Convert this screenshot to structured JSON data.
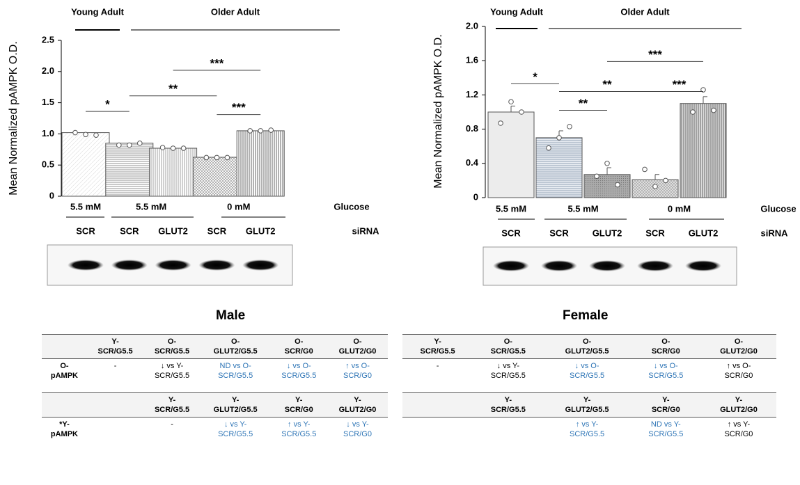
{
  "chart_data": [
    {
      "type": "bar",
      "y_label": "Mean Normalized pAMPK O.D.",
      "groups": [
        "Young Adult",
        "Older Adult"
      ],
      "glucose": [
        "5.5 mM",
        "5.5 mM",
        "0 mM"
      ],
      "glucose_label": "Glucose",
      "categories": [
        "SCR",
        "SCR",
        "GLUT2",
        "SCR",
        "GLUT2"
      ],
      "sirna_label": "siRNA",
      "values": [
        1.02,
        0.85,
        0.77,
        0.625,
        1.05
      ],
      "points": [
        [
          1.02,
          0.99,
          0.98
        ],
        [
          0.82,
          0.82,
          0.85
        ],
        [
          0.78,
          0.77,
          0.77
        ],
        [
          0.62,
          0.62,
          0.62
        ],
        [
          1.05,
          1.05,
          1.06
        ]
      ],
      "ylim": [
        0,
        2.5
      ],
      "yticks": [
        0,
        0.5,
        {
          "value": 1,
          "label": "1.0"
        },
        1.5,
        {
          "value": 2,
          "label": "2.0"
        },
        2.5
      ],
      "annotations": [
        {
          "from": 0,
          "to": 1,
          "y": 1.36,
          "label": "*"
        },
        {
          "from": 1,
          "to": 3,
          "y": 1.61,
          "label": "**"
        },
        {
          "from": 2,
          "to": 4,
          "y": 2.02,
          "label": "***"
        },
        {
          "from": 3,
          "to": 4,
          "y": 1.31,
          "label": "***"
        }
      ]
    },
    {
      "type": "bar",
      "y_label": "Mean Normalized pAMPK O.D.",
      "groups": [
        "Young Adult",
        "Older Adult"
      ],
      "glucose": [
        "5.5 mM",
        "5.5 mM",
        "0 mM"
      ],
      "glucose_label": "Glucose",
      "categories": [
        "SCR",
        "SCR",
        "GLUT2",
        "SCR",
        "GLUT2"
      ],
      "sirna_label": "siRNA",
      "values": [
        1.0,
        0.7,
        0.27,
        0.21,
        1.1
      ],
      "errors": [
        0.07,
        0.08,
        0.08,
        0.06,
        0.08
      ],
      "points": [
        [
          0.87,
          1.12,
          1.0
        ],
        [
          0.58,
          0.7,
          0.83
        ],
        [
          0.25,
          0.4,
          0.15
        ],
        [
          0.33,
          0.13,
          0.2
        ],
        [
          1.0,
          1.26,
          1.02
        ]
      ],
      "ylim": [
        0,
        2.0
      ],
      "yticks": [
        0,
        0.4,
        0.8,
        1.2,
        1.6,
        {
          "value": 2,
          "label": "2.0"
        }
      ],
      "annotations": [
        {
          "from": 0,
          "to": 1,
          "y": 1.33,
          "label": "*"
        },
        {
          "from": 1,
          "to": 2,
          "y": 1.02,
          "label": "**"
        },
        {
          "from": 1,
          "to": 3,
          "y": 1.24,
          "label": "**"
        },
        {
          "from": 2,
          "to": 4,
          "y": 1.59,
          "label": "***"
        },
        {
          "from": 3,
          "to": 4,
          "y": 1.24,
          "label": "***"
        }
      ]
    }
  ],
  "tables": [
    {
      "title": "Male",
      "rows": [
        [
          null,
          "Y-\nSCR/G5.5",
          "O-\nSCR/G5.5",
          "O-\nGLUT2/G5.5",
          "O-\nSCR/G0",
          "O-\nGLUT2/G0"
        ],
        [
          "O-\npAMPK",
          "-",
          "↓ vs Y-\nSCR/G5.5",
          {
            "text": "ND vs O-\nSCR/G5.5",
            "color": "#2e75b6"
          },
          {
            "text": "↓ vs O-\nSCR/G5.5",
            "color": "#2e75b6"
          },
          {
            "text": "↑ vs O-\nSCR/G0",
            "color": "#2e75b6"
          }
        ],
        [
          null,
          null,
          "Y-\nSCR/G5.5",
          "Y-\nGLUT2/G5.5",
          "Y-\nSCR/G0",
          "Y-\nGLUT2/G0"
        ],
        [
          "*Y-\npAMPK",
          null,
          "-",
          {
            "text": "↓ vs Y-\nSCR/G5.5",
            "color": "#2e75b6"
          },
          {
            "text": "↑ vs Y-\nSCR/G5.5",
            "color": "#2e75b6"
          },
          {
            "text": "↓ vs Y-\nSCR/G0",
            "color": "#2e75b6"
          }
        ]
      ]
    },
    {
      "title": "Female",
      "rows": [
        [
          "Y-\nSCR/G5.5",
          "O-\nSCR/G5.5",
          "O-\nGLUT2/G5.5",
          "O-\nSCR/G0",
          "O-\nGLUT2/G0"
        ],
        [
          "-",
          "↓ vs Y-\nSCR/G5.5",
          {
            "text": "↓ vs O-\nSCR/G5.5",
            "color": "#2e75b6"
          },
          {
            "text": "↓ vs O-\nSCR/G5.5",
            "color": "#2e75b6"
          },
          "↑ vs O-\nSCR/G0"
        ],
        [
          null,
          "Y-\nSCR/G5.5",
          "Y-\nGLUT2/G5.5",
          "Y-\nSCR/G0",
          "Y-\nGLUT2/G0"
        ],
        [
          null,
          null,
          {
            "text": "↑ vs Y-\nSCR/G5.5",
            "color": "#2e75b6"
          },
          {
            "text": "ND vs Y-\nSCR/G5.5",
            "color": "#2e75b6"
          },
          "↑ vs Y-\nSCR/G0"
        ]
      ]
    }
  ]
}
